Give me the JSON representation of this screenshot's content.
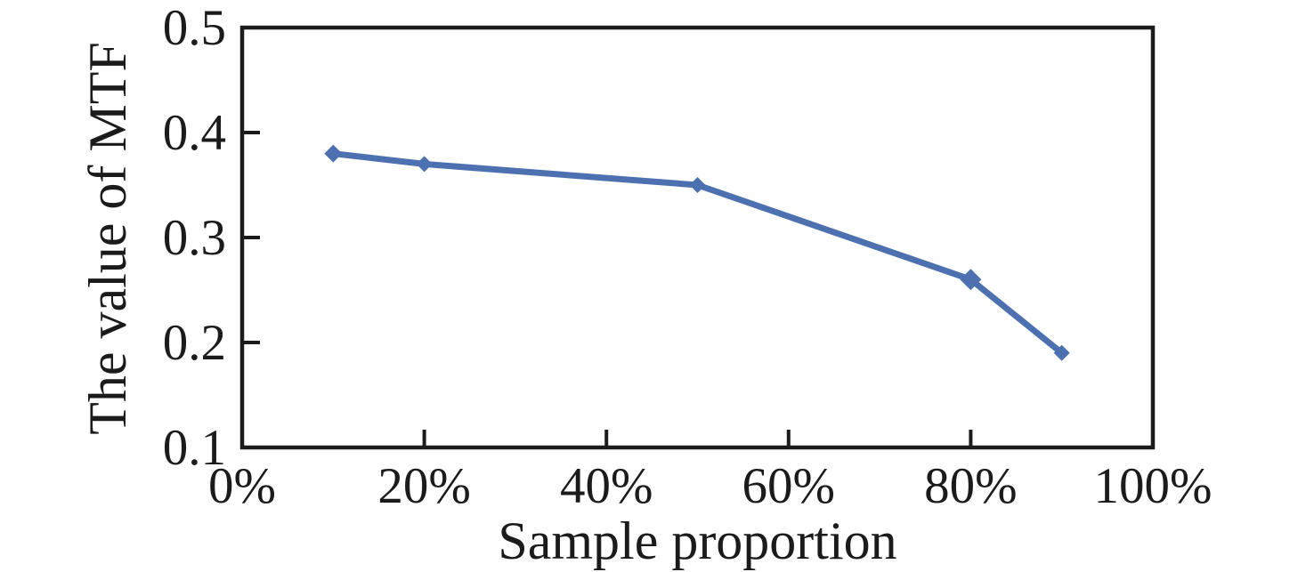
{
  "chart_data": {
    "type": "line",
    "title": "",
    "xlabel": "Sample proportion",
    "ylabel": "The value of MTF",
    "xlim": [
      0,
      100
    ],
    "ylim": [
      0.1,
      0.5
    ],
    "x_ticks": [
      0,
      20,
      40,
      60,
      80,
      100
    ],
    "x_tick_labels": [
      "0%",
      "20%",
      "40%",
      "60%",
      "80%",
      "100%"
    ],
    "y_ticks": [
      0.1,
      0.2,
      0.3,
      0.4,
      0.5
    ],
    "y_tick_labels": [
      "0.1",
      "0.2",
      "0.3",
      "0.4",
      "0.5"
    ],
    "grid": false,
    "legend_position": "none",
    "frame": "full-box",
    "tick_direction": "in",
    "axis_color": "#1b1b1b",
    "text_color": "#1b1b1b",
    "series": [
      {
        "name": "MTF",
        "x": [
          10,
          20,
          50,
          80,
          90
        ],
        "y": [
          0.38,
          0.37,
          0.35,
          0.26,
          0.19
        ],
        "color": "#4d71b0",
        "marker": "diamond",
        "marker_sizes": [
          10,
          9,
          9,
          12,
          9
        ],
        "line_width": 7
      }
    ]
  }
}
